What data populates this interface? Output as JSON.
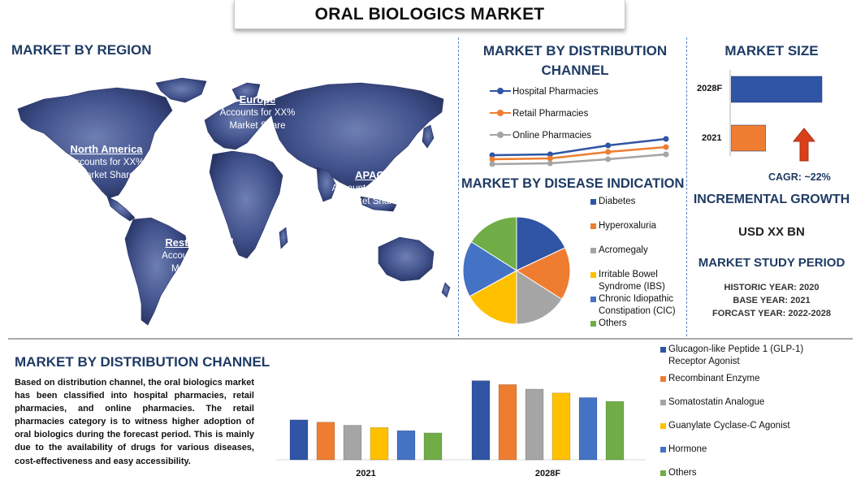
{
  "title": "ORAL BIOLOGICS MARKET",
  "region": {
    "heading": "MARKET BY REGION",
    "boxes": [
      {
        "name": "North America",
        "line1": "Accounts for XX%",
        "line2": "Market Share",
        "color": "#c0302d"
      },
      {
        "name": "Europe",
        "line1": "Accounts for XX%",
        "line2": "Market Share",
        "color": "#9c5a2e"
      },
      {
        "name": "APAC",
        "line1": "Accounts for XX%",
        "line2": "Market Share",
        "color": "#3f5236"
      },
      {
        "name": "Rest of World",
        "line1": "Accounts for XX%",
        "line2": "Market Share",
        "color": "#233f82"
      }
    ]
  },
  "distribution_top": {
    "heading_line1": "MARKET BY DISTRIBUTION",
    "heading_line2": "CHANNEL",
    "legend": [
      "Hospital Pharmacies",
      "Retail Pharmacies",
      "Online Pharmacies"
    ]
  },
  "disease": {
    "heading": "MARKET BY DISEASE INDICATION",
    "legend": [
      "Diabetes",
      "Hyperoxaluria",
      "Acromegaly",
      "Irritable Bowel Syndrome (IBS)",
      "Chronic Idiopathic Constipation (CIC)",
      "Others"
    ]
  },
  "market_size": {
    "heading": "MARKET SIZE",
    "year_2028": "2028F",
    "year_2021": "2021",
    "cagr": "CAGR:  ~22%",
    "incremental_heading": "INCREMENTAL GROWTH",
    "incremental_value": "USD XX BN",
    "study_heading": "MARKET STUDY PERIOD",
    "historic": "HISTORIC YEAR: 2020",
    "base": "BASE YEAR: 2021",
    "forecast": "FORCAST YEAR: 2022-2028"
  },
  "bottom": {
    "heading": "MARKET BY DISTRIBUTION CHANNEL",
    "paragraph": "Based on distribution channel, the oral biologics market has been classified into hospital pharmacies, retail pharmacies, and online pharmacies. The retail pharmacies category is to witness higher adoption of oral biologics during the forecast period. This is mainly due to the availability of drugs for various diseases, cost-effectiveness and easy accessibility."
  },
  "colors": {
    "blue": "#2f55a4",
    "orange": "#ee7d31",
    "gray": "#a5a5a5",
    "yellow": "#ffc000",
    "lightblue": "#4472c4",
    "green": "#70ad47",
    "arrow": "#d9401a"
  },
  "chart_data": [
    {
      "type": "line",
      "title": "MARKET BY DISTRIBUTION CHANNEL",
      "x": [
        "",
        "",
        "",
        ""
      ],
      "series": [
        {
          "name": "Hospital Pharmacies",
          "values": [
            25,
            26,
            37,
            45
          ]
        },
        {
          "name": "Retail Pharmacies",
          "values": [
            20,
            21,
            29,
            35
          ]
        },
        {
          "name": "Online Pharmacies",
          "values": [
            14,
            15,
            20,
            26
          ]
        }
      ],
      "ylim": [
        0,
        100
      ],
      "grid": false,
      "legend": "top"
    },
    {
      "type": "pie",
      "title": "MARKET BY DISEASE INDICATION",
      "labels": [
        "Diabetes",
        "Hyperoxaluria",
        "Acromegaly",
        "Irritable Bowel Syndrome (IBS)",
        "Chronic Idiopathic Constipation (CIC)",
        "Others"
      ],
      "values": [
        18,
        16,
        16,
        17,
        17,
        16
      ],
      "legend": "right"
    },
    {
      "type": "bar",
      "title": "MARKET SIZE",
      "orientation": "horizontal",
      "categories": [
        "2028F",
        "2021"
      ],
      "values": [
        100,
        38
      ],
      "xlim": [
        0,
        100
      ]
    },
    {
      "type": "bar",
      "title": "MARKET BY DISTRIBUTION CHANNEL",
      "categories": [
        "2021",
        "2028F"
      ],
      "series": [
        {
          "name": "Glucagon-like Peptide 1 (GLP-1) Receptor Agonist",
          "values": [
            52,
            103
          ]
        },
        {
          "name": "Recombinant Enzyme",
          "values": [
            49,
            98
          ]
        },
        {
          "name": "Somatostatin Analogue",
          "values": [
            45,
            92
          ]
        },
        {
          "name": "Guanylate Cyclase-C Agonist",
          "values": [
            42,
            87
          ]
        },
        {
          "name": "Hormone",
          "values": [
            38,
            81
          ]
        },
        {
          "name": "Others",
          "values": [
            35,
            76
          ]
        }
      ],
      "ylim": [
        0,
        110
      ],
      "grid": false,
      "legend": "right"
    }
  ]
}
